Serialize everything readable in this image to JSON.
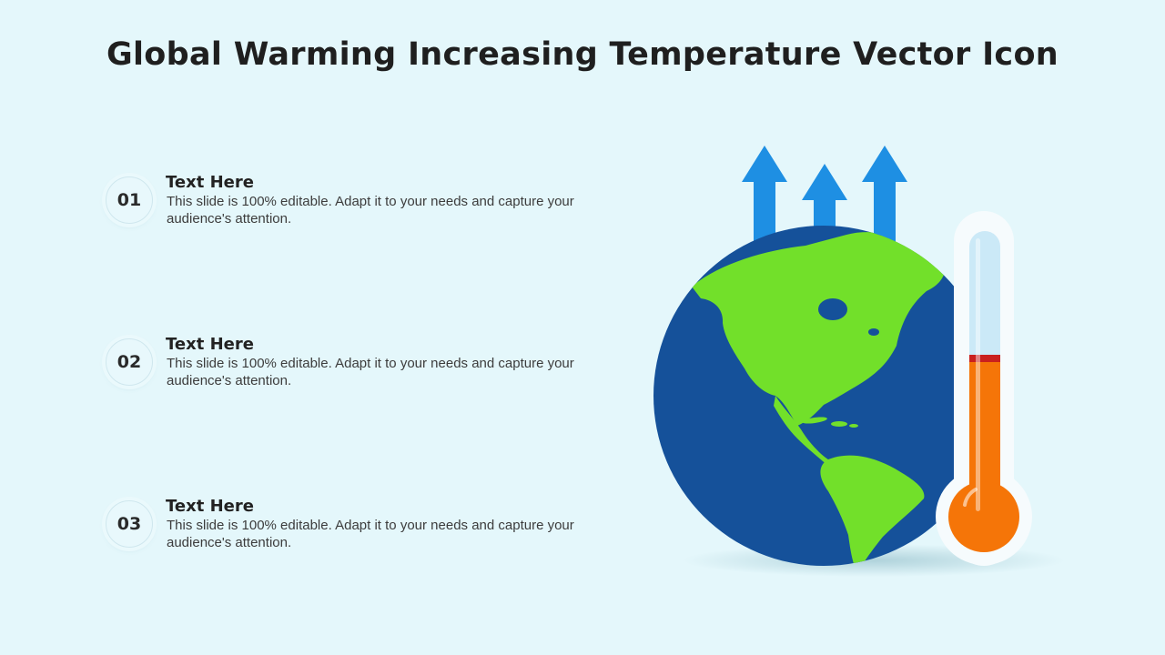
{
  "slide": {
    "title": "Global Warming Increasing Temperature Vector Icon"
  },
  "items": [
    {
      "number": "01",
      "title": "Text Here",
      "description": "This slide is 100% editable. Adapt it to your needs and capture your audience's attention."
    },
    {
      "number": "02",
      "title": "Text Here",
      "description": "This slide is 100% editable. Adapt it to your needs and capture your audience's attention."
    },
    {
      "number": "03",
      "title": "Text Here",
      "description": "This slide is 100% editable. Adapt it to your needs and capture your audience's attention."
    }
  ],
  "illustration": {
    "icons": [
      "up-arrow-icon",
      "globe-icon",
      "thermometer-icon"
    ],
    "colors": {
      "background": "#e4f7fb",
      "arrow": "#1e8fe3",
      "ocean": "#15519a",
      "land": "#72e02a",
      "thermometer_fluid": "#f57508",
      "thermometer_tube": "#cbe9f7"
    }
  }
}
